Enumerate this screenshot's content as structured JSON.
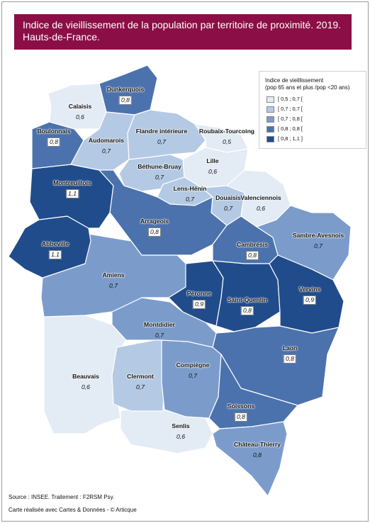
{
  "title": {
    "line1": "Indice de vieillissement de la population par territoire de proximité. 2019.",
    "line2": "Hauts-de-France."
  },
  "legend": {
    "title_line1": "Indice de vieillissement",
    "title_line2": "(pop 65 ans et plus /pop <20 ans)",
    "classes": [
      {
        "label": "[ 0,5 ; 0,7 [",
        "color": "#e3ebf5"
      },
      {
        "label": "[ 0,7 ; 0,7 [",
        "color": "#b4c9e4"
      },
      {
        "label": "[ 0,7 ; 0,8 [",
        "color": "#7b9ccb"
      },
      {
        "label": "[ 0,8 ; 0,8 [",
        "color": "#4b72ad"
      },
      {
        "label": "[ 0,8 ; 1,1 ]",
        "color": "#214c8c"
      }
    ]
  },
  "territories": [
    {
      "name": "Dunkerquois",
      "value": "0,8",
      "class": 3
    },
    {
      "name": "Calaisis",
      "value": "0,6",
      "class": 0
    },
    {
      "name": "Boulonnais",
      "value": "0,8",
      "class": 3
    },
    {
      "name": "Audomarois",
      "value": "0,7",
      "class": 1
    },
    {
      "name": "Flandre intérieure",
      "value": "0,7",
      "class": 1
    },
    {
      "name": "Roubaix-Tourcoing",
      "value": "0,5",
      "class": 0
    },
    {
      "name": "Lille",
      "value": "0,6",
      "class": 0
    },
    {
      "name": "Béthune-Bruay",
      "value": "0,7",
      "class": 1
    },
    {
      "name": "Montreuillois",
      "value": "1,1",
      "class": 4
    },
    {
      "name": "Lens-Hénin",
      "value": "0,7",
      "class": 1
    },
    {
      "name": "Douaisis",
      "value": "0,7",
      "class": 1
    },
    {
      "name": "Valenciennois",
      "value": "0,6",
      "class": 0
    },
    {
      "name": "Arrageois",
      "value": "0,8",
      "class": 3
    },
    {
      "name": "Sambre-Avesnois",
      "value": "0,7",
      "class": 2
    },
    {
      "name": "Abbeville",
      "value": "1,1",
      "class": 4
    },
    {
      "name": "Cambrésis",
      "value": "0,8",
      "class": 3
    },
    {
      "name": "Amiens",
      "value": "0,7",
      "class": 2
    },
    {
      "name": "Péronne",
      "value": "0,9",
      "class": 4
    },
    {
      "name": "Saint-Quentin",
      "value": "0,8",
      "class": 4
    },
    {
      "name": "Vervins",
      "value": "0,9",
      "class": 4
    },
    {
      "name": "Montdidier",
      "value": "0,7",
      "class": 2
    },
    {
      "name": "Laon",
      "value": "0,8",
      "class": 3
    },
    {
      "name": "Beauvais",
      "value": "0,6",
      "class": 0
    },
    {
      "name": "Clermont",
      "value": "0,7",
      "class": 1
    },
    {
      "name": "Compiègne",
      "value": "0,7",
      "class": 2
    },
    {
      "name": "Soissons",
      "value": "0,8",
      "class": 3
    },
    {
      "name": "Senlis",
      "value": "0,6",
      "class": 0
    },
    {
      "name": "Château-Thierry",
      "value": "0,8",
      "class": 2
    }
  ],
  "footer": {
    "source": "Source : INSEE.    Traitement : F2RSM Psy.",
    "credit": "Carte réalisée avec Cartes & Données - © Articque"
  }
}
